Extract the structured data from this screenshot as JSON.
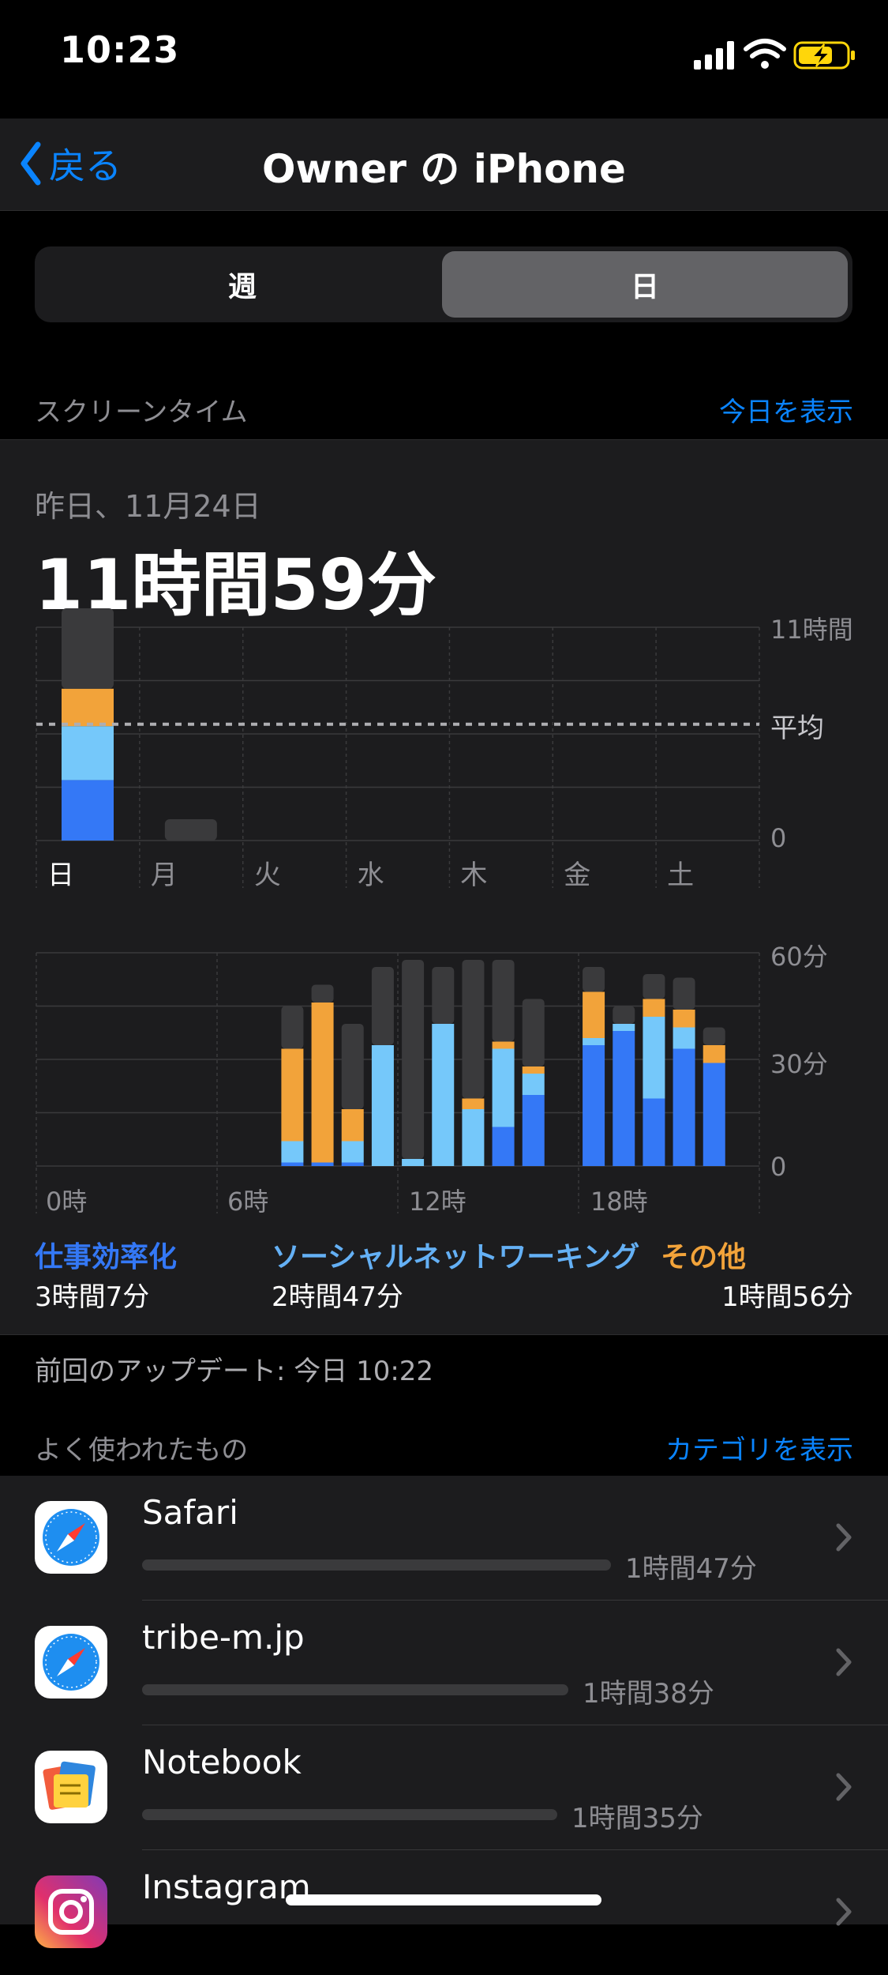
{
  "status": {
    "time": "10:23"
  },
  "nav": {
    "back_label": "戻る",
    "title": "Owner の iPhone"
  },
  "segment": {
    "week": "週",
    "day": "日"
  },
  "screen_time": {
    "label": "スクリーンタイム",
    "show_today": "今日を表示"
  },
  "summary": {
    "date": "昨日、11月24日",
    "total": "11時間59分"
  },
  "weekly_chart": {
    "y_top_label": "11時間",
    "avg_label": "平均",
    "y_zero_label": "0",
    "days": [
      "日",
      "月",
      "火",
      "水",
      "木",
      "金",
      "土"
    ]
  },
  "hourly_chart": {
    "y_labels": [
      "60分",
      "30分",
      "0"
    ],
    "x_labels": [
      "0時",
      "6時",
      "12時",
      "18時"
    ]
  },
  "chart_data": {
    "type": "bar",
    "weekly": {
      "categories": [
        "日",
        "月",
        "火",
        "水",
        "木",
        "金",
        "土"
      ],
      "unit": "hours",
      "ylim": [
        0,
        11
      ],
      "average_hours": 6,
      "series": [
        {
          "name": "仕事効率化",
          "color": "#3478f6",
          "values": [
            3.12,
            0,
            0,
            0,
            0,
            0,
            0
          ]
        },
        {
          "name": "ソーシャルネットワーキング",
          "color": "#75c8fa",
          "values": [
            2.78,
            0,
            0,
            0,
            0,
            0,
            0
          ]
        },
        {
          "name": "その他",
          "color": "#f2a33a",
          "values": [
            1.93,
            0,
            0,
            0,
            0,
            0,
            0
          ]
        },
        {
          "color": "#3a3a3c",
          "values": [
            4.15,
            1.1,
            0,
            0,
            0,
            0,
            0
          ]
        }
      ]
    },
    "hourly": {
      "unit": "minutes",
      "ylim": [
        0,
        60
      ],
      "hours": [
        8,
        9,
        10,
        11,
        12,
        13,
        14,
        15,
        16,
        18,
        19,
        20,
        21,
        22
      ],
      "series": [
        {
          "name": "仕事効率化",
          "color": "#3478f6",
          "values": [
            1,
            1,
            1,
            0,
            0,
            0,
            0,
            11,
            20,
            34,
            38,
            19,
            33,
            29
          ]
        },
        {
          "name": "ソーシャルネットワーキング",
          "color": "#75c8fa",
          "values": [
            6,
            0,
            6,
            34,
            2,
            40,
            16,
            22,
            6,
            2,
            2,
            23,
            6,
            0
          ]
        },
        {
          "name": "その他",
          "color": "#f2a33a",
          "values": [
            26,
            45,
            9,
            0,
            0,
            0,
            3,
            2,
            2,
            13,
            0,
            5,
            5,
            5
          ]
        },
        {
          "color": "#3a3a3c",
          "values": [
            12,
            5,
            24,
            22,
            56,
            16,
            39,
            23,
            19,
            7,
            5,
            7,
            9,
            5
          ]
        }
      ]
    }
  },
  "legend": [
    {
      "title": "仕事効率化",
      "value": "3時間7分",
      "color": "#3478f6"
    },
    {
      "title": "ソーシャルネットワーキング",
      "value": "2時間47分",
      "color": "#64b0f5"
    },
    {
      "title": "その他",
      "value": "1時間56分",
      "color": "#f2a33a"
    }
  ],
  "last_update": "前回のアップデート: 今日 10:22",
  "most_used": {
    "label": "よく使われたもの",
    "show_categories": "カテゴリを表示",
    "apps": [
      {
        "name": "Safari",
        "time": "1時間47分",
        "icon": "safari-icon",
        "fraction": 1.0
      },
      {
        "name": "tribe-m.jp",
        "time": "1時間38分",
        "icon": "safari-icon",
        "fraction": 0.916
      },
      {
        "name": "Notebook",
        "time": "1時間35分",
        "icon": "notebook-icon",
        "fraction": 0.888
      },
      {
        "name": "Instagram",
        "time": "",
        "icon": "instagram-icon",
        "fraction": 0
      }
    ]
  }
}
